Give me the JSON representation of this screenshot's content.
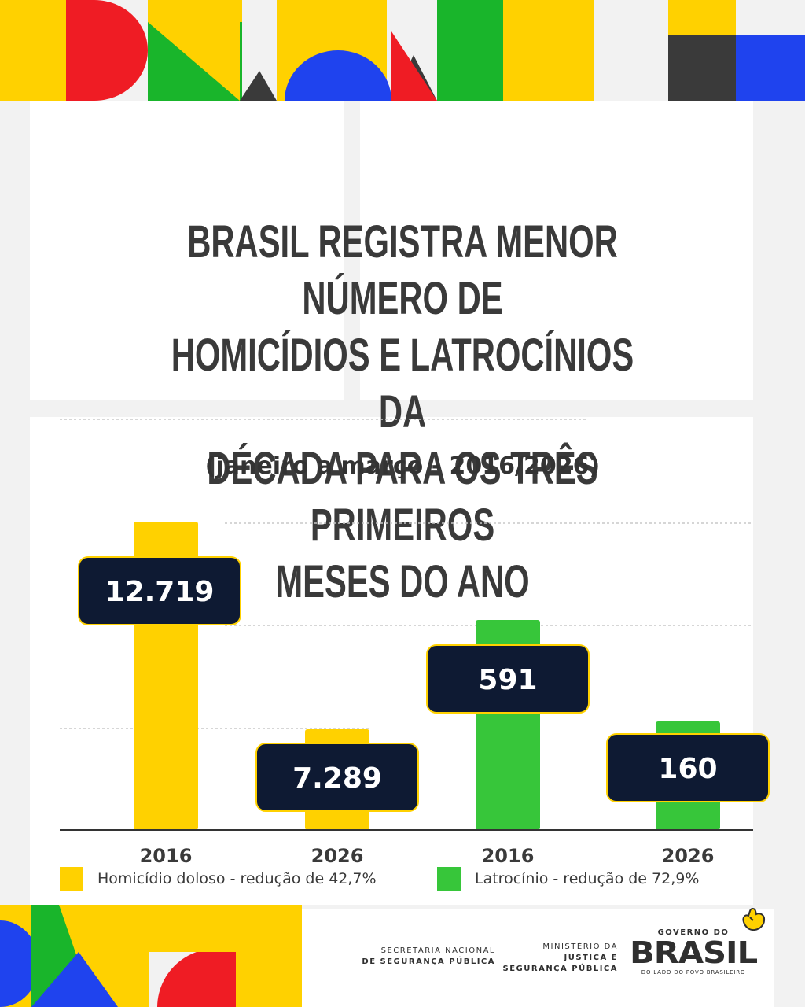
{
  "headline": "BRASIL REGISTRA MENOR NÚMERO DE\nHOMICÍDIOS E LATROCÍNIOS DA\nDÉCADA PARA OS TRÊS PRIMEIROS\nMESES DO ANO",
  "subheadline": "(janeiro a março - 2016/2026)",
  "colors": {
    "homicidio": "#ffd100",
    "latrocinio": "#37c63a",
    "label_box": "#0e1a33",
    "label_border": "#ffd100",
    "text_dark": "#3a3a3a",
    "deco_yellow": "#ffd100",
    "deco_red": "#ef1c24",
    "deco_green": "#19b52b",
    "deco_blue": "#1f43ee",
    "deco_dark": "#3a3a3a"
  },
  "chart_data": {
    "type": "bar",
    "categories": [
      "2016",
      "2026",
      "2016",
      "2026"
    ],
    "value_labels": [
      "12.719",
      "7.289",
      "591",
      "160"
    ],
    "groups": [
      {
        "name": "Homicídio doloso",
        "values": [
          12719,
          7289
        ],
        "index_range": [
          0,
          1
        ]
      },
      {
        "name": "Latrocínio",
        "values": [
          591,
          160
        ],
        "index_range": [
          2,
          3
        ]
      }
    ],
    "grid": true,
    "legend_position": "bottom"
  },
  "legend": {
    "homicidio": "Homicídio doloso - redução de 42,7%",
    "latrocinio": "Latrocínio - redução de 72,9%"
  },
  "footer": {
    "org1_line1": "SECRETARIA NACIONAL",
    "org1_line2": "DE SEGURANÇA PÚBLICA",
    "org2_line1": "MINISTÉRIO DA",
    "org2_line2": "JUSTIÇA E",
    "org2_line3": "SEGURANÇA PÚBLICA",
    "gov_top": "GOVERNO DO",
    "gov_brasil": "BRASIL",
    "gov_slogan": "DO LADO DO POVO BRASILEIRO"
  },
  "icons": {
    "hand": "tap-hand-icon"
  }
}
